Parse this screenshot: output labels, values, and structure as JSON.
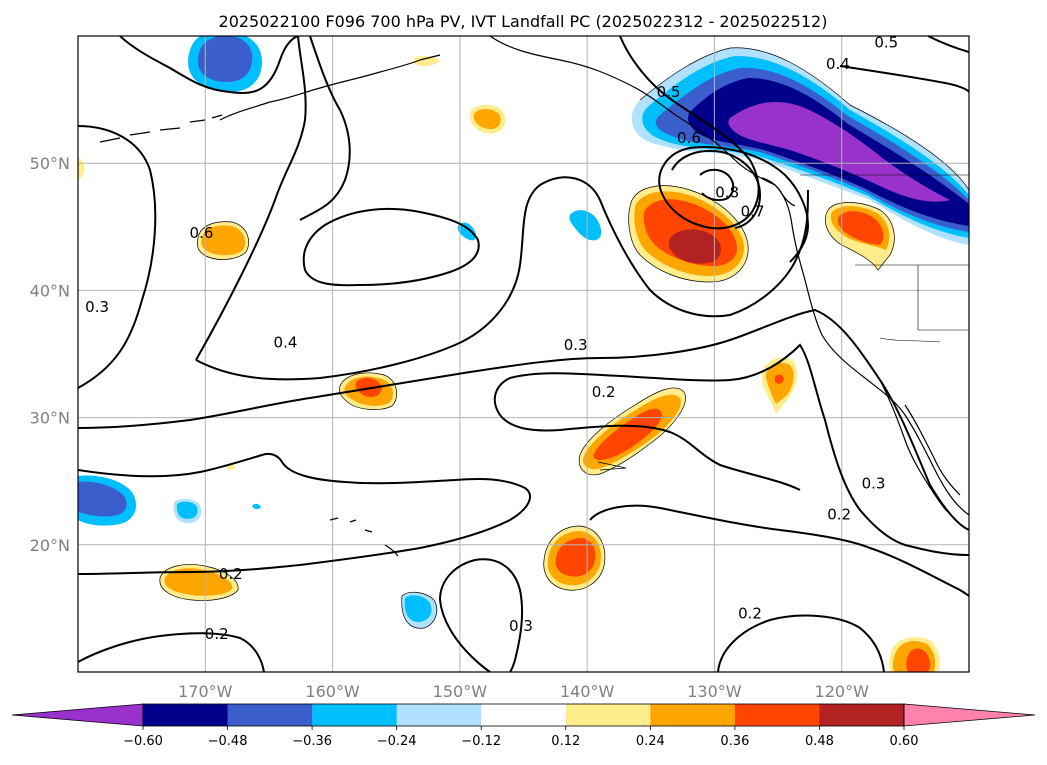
{
  "title": "2025022100 F096 700 hPa PV, IVT Landfall PC (2025022312 - 2025022512)",
  "map": {
    "lon_range": [
      -180,
      -110
    ],
    "lat_range": [
      10,
      60
    ],
    "lon_ticks": [
      {
        "value": -170,
        "label": "170°W"
      },
      {
        "value": -160,
        "label": "160°W"
      },
      {
        "value": -150,
        "label": "150°W"
      },
      {
        "value": -140,
        "label": "140°W"
      },
      {
        "value": -130,
        "label": "130°W"
      },
      {
        "value": -120,
        "label": "120°W"
      }
    ],
    "lat_ticks": [
      {
        "value": 20,
        "label": "20°N"
      },
      {
        "value": 30,
        "label": "30°N"
      },
      {
        "value": 40,
        "label": "40°N"
      },
      {
        "value": 50,
        "label": "50°N"
      }
    ],
    "gridlines": true,
    "contour_labels": [
      {
        "text": "0.5",
        "lon": -116.5,
        "lat": 59.5
      },
      {
        "text": "0.4",
        "lon": -120.3,
        "lat": 57.8
      },
      {
        "text": "0.5",
        "lon": -133.6,
        "lat": 55.6
      },
      {
        "text": "0.6",
        "lon": -132.0,
        "lat": 52.0
      },
      {
        "text": "0.8",
        "lon": -129.0,
        "lat": 47.7
      },
      {
        "text": "0.7",
        "lon": -127.0,
        "lat": 46.2
      },
      {
        "text": "0.6",
        "lon": -170.3,
        "lat": 44.5
      },
      {
        "text": "0.3",
        "lon": -178.5,
        "lat": 38.7
      },
      {
        "text": "0.4",
        "lon": -163.7,
        "lat": 35.9
      },
      {
        "text": "0.3",
        "lon": -140.9,
        "lat": 35.7
      },
      {
        "text": "0.2",
        "lon": -138.7,
        "lat": 32.0
      },
      {
        "text": "0.3",
        "lon": -117.5,
        "lat": 24.8
      },
      {
        "text": "0.2",
        "lon": -120.2,
        "lat": 22.4
      },
      {
        "text": "0.2",
        "lon": -168.0,
        "lat": 17.7
      },
      {
        "text": "0.3",
        "lon": -145.2,
        "lat": 13.6
      },
      {
        "text": "0.2",
        "lon": -127.2,
        "lat": 14.6
      },
      {
        "text": "0.2",
        "lon": -169.1,
        "lat": 13.0
      }
    ]
  },
  "colorbar": {
    "tick_labels": [
      "−0.60",
      "−0.48",
      "−0.36",
      "−0.24",
      "−0.12",
      "0.12",
      "0.24",
      "0.36",
      "0.48",
      "0.60"
    ],
    "levels": [
      -0.6,
      -0.48,
      -0.36,
      -0.24,
      -0.12,
      0.12,
      0.24,
      0.36,
      0.48,
      0.6
    ],
    "colors": [
      "#9932cc",
      "#00008b",
      "#3a5fcd",
      "#00bfff",
      "#b0e2ff",
      "#ffffff",
      "#ffec8b",
      "#ffa500",
      "#ff4500",
      "#b22222",
      "#ff82ab"
    ]
  }
}
